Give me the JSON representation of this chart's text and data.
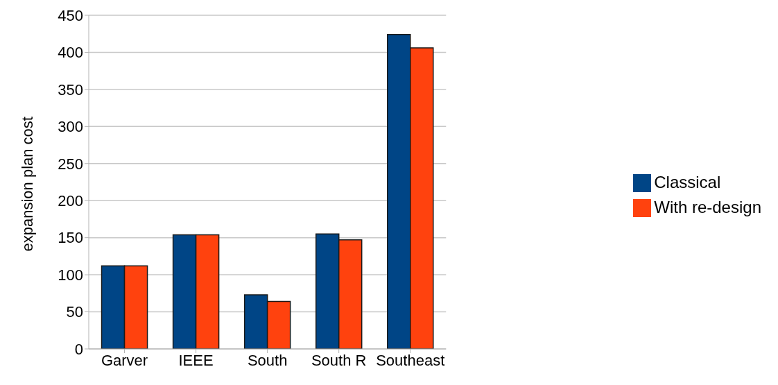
{
  "chart_data": {
    "type": "bar",
    "ylabel": "expansion plan cost",
    "categories": [
      "Garver",
      "IEEE",
      "South",
      "South R",
      "Southeast"
    ],
    "series": [
      {
        "name": "Classical",
        "color": "#004586",
        "values": [
          112,
          154,
          73,
          155,
          424
        ]
      },
      {
        "name": "With re-design",
        "color": "#ff420e",
        "values": [
          112,
          154,
          64,
          147,
          406
        ]
      }
    ],
    "ylim": [
      0,
      450
    ],
    "yticks": [
      0,
      50,
      100,
      150,
      200,
      250,
      300,
      350,
      400,
      450
    ],
    "grid": "y",
    "legend": "right"
  }
}
